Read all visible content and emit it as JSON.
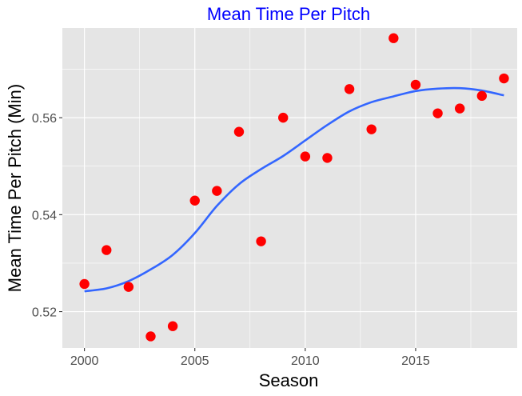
{
  "chart_data": {
    "type": "scatter",
    "title": "Mean Time Per Pitch",
    "xlabel": "Season",
    "ylabel": "Mean Time Per Pitch (Min)",
    "xlim": [
      1999.0,
      2019.6
    ],
    "ylim": [
      0.5125,
      0.5785
    ],
    "x_ticks": [
      2000,
      2005,
      2010,
      2015
    ],
    "x_tick_labels": [
      "2000",
      "2005",
      "2010",
      "2015"
    ],
    "y_ticks": [
      0.52,
      0.54,
      0.56
    ],
    "y_tick_labels": [
      "0.52",
      "0.54",
      "0.56"
    ],
    "grid": true,
    "series": [
      {
        "type": "scatter",
        "color": "#FF0000",
        "x": [
          2000,
          2001,
          2002,
          2003,
          2004,
          2005,
          2006,
          2007,
          2008,
          2009,
          2010,
          2011,
          2012,
          2013,
          2014,
          2015,
          2016,
          2017,
          2018,
          2019
        ],
        "values": [
          0.5257,
          0.5327,
          0.5251,
          0.5149,
          0.517,
          0.5429,
          0.5449,
          0.5571,
          0.5345,
          0.56,
          0.552,
          0.5517,
          0.5659,
          0.5576,
          0.5764,
          0.5668,
          0.5609,
          0.5619,
          0.5645,
          0.5681
        ]
      },
      {
        "type": "line",
        "smooth": true,
        "color": "#3366FF",
        "x": [
          2000,
          2001,
          2002,
          2003,
          2004,
          2005,
          2006,
          2007,
          2008,
          2009,
          2010,
          2011,
          2012,
          2013,
          2014,
          2015,
          2016,
          2017,
          2018,
          2019
        ],
        "values": [
          0.5242,
          0.5248,
          0.5263,
          0.5287,
          0.5317,
          0.5362,
          0.5418,
          0.5463,
          0.5494,
          0.5521,
          0.5553,
          0.5585,
          0.5613,
          0.5632,
          0.5644,
          0.5655,
          0.566,
          0.5661,
          0.5656,
          0.5646
        ]
      }
    ],
    "colors": {
      "title": "#0000FF",
      "panel_background": "#E5E5E5",
      "grid": "#FFFFFF",
      "points": "#FF0000",
      "smooth_line": "#3366FF"
    }
  }
}
